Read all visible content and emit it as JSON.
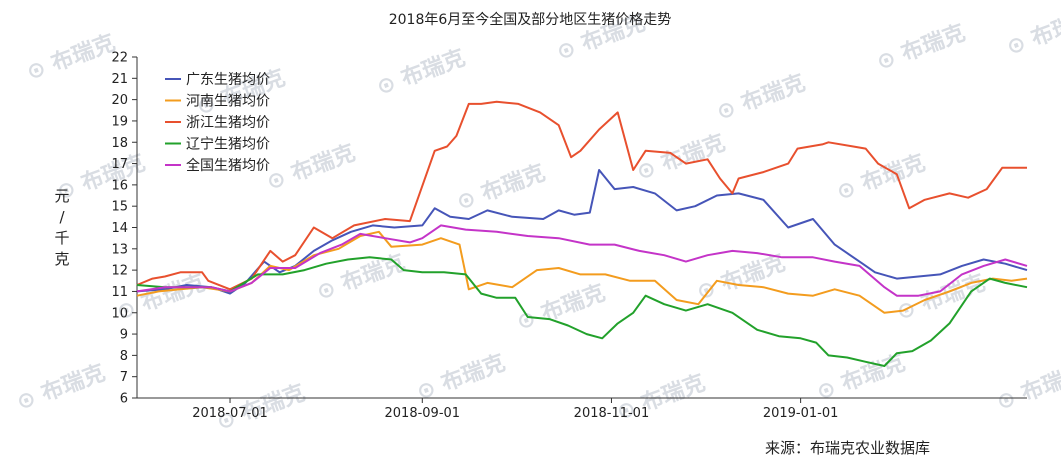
{
  "chart_data": {
    "type": "line",
    "title": "2018年6月至今全国及部分地区生猪价格走势",
    "ylabel_chars": [
      "元",
      "/",
      "千",
      "克"
    ],
    "source": "来源：布瑞克农业数据库",
    "watermark": "布瑞克",
    "x_start": "2018-06-01",
    "x_end": "2019-03-15",
    "x_ticks": [
      "2018-07-01",
      "2018-09-01",
      "2018-11-01",
      "2019-01-01"
    ],
    "ylim": [
      6,
      22
    ],
    "y_ticks": [
      6,
      7,
      8,
      9,
      10,
      11,
      12,
      13,
      14,
      15,
      16,
      17,
      18,
      19,
      20,
      21,
      22
    ],
    "legend_position": "top-left",
    "series": [
      {
        "name": "广东生猪均价",
        "color": "#4655b8",
        "points": [
          [
            "2018-06-01",
            11.0
          ],
          [
            "2018-06-10",
            11.1
          ],
          [
            "2018-06-17",
            11.3
          ],
          [
            "2018-06-25",
            11.2
          ],
          [
            "2018-07-01",
            10.9
          ],
          [
            "2018-07-06",
            11.4
          ],
          [
            "2018-07-12",
            12.4
          ],
          [
            "2018-07-17",
            11.9
          ],
          [
            "2018-07-22",
            12.2
          ],
          [
            "2018-07-28",
            12.9
          ],
          [
            "2018-08-03",
            13.4
          ],
          [
            "2018-08-09",
            13.8
          ],
          [
            "2018-08-16",
            14.1
          ],
          [
            "2018-08-23",
            14.0
          ],
          [
            "2018-09-01",
            14.1
          ],
          [
            "2018-09-05",
            14.9
          ],
          [
            "2018-09-10",
            14.5
          ],
          [
            "2018-09-16",
            14.4
          ],
          [
            "2018-09-22",
            14.8
          ],
          [
            "2018-09-30",
            14.5
          ],
          [
            "2018-10-10",
            14.4
          ],
          [
            "2018-10-15",
            14.8
          ],
          [
            "2018-10-20",
            14.6
          ],
          [
            "2018-10-25",
            14.7
          ],
          [
            "2018-10-28",
            16.7
          ],
          [
            "2018-11-02",
            15.8
          ],
          [
            "2018-11-08",
            15.9
          ],
          [
            "2018-11-15",
            15.6
          ],
          [
            "2018-11-22",
            14.8
          ],
          [
            "2018-11-28",
            15.0
          ],
          [
            "2018-12-05",
            15.5
          ],
          [
            "2018-12-12",
            15.6
          ],
          [
            "2018-12-20",
            15.3
          ],
          [
            "2018-12-28",
            14.0
          ],
          [
            "2019-01-05",
            14.4
          ],
          [
            "2019-01-12",
            13.2
          ],
          [
            "2019-01-16",
            12.8
          ],
          [
            "2019-01-21",
            12.3
          ],
          [
            "2019-01-25",
            11.9
          ],
          [
            "2019-02-01",
            11.6
          ],
          [
            "2019-02-08",
            11.7
          ],
          [
            "2019-02-15",
            11.8
          ],
          [
            "2019-02-22",
            12.2
          ],
          [
            "2019-03-01",
            12.5
          ],
          [
            "2019-03-08",
            12.3
          ],
          [
            "2019-03-15",
            12.0
          ]
        ]
      },
      {
        "name": "河南生猪均价",
        "color": "#f39c1e",
        "points": [
          [
            "2018-06-01",
            10.8
          ],
          [
            "2018-06-08",
            11.0
          ],
          [
            "2018-06-15",
            11.1
          ],
          [
            "2018-06-22",
            11.2
          ],
          [
            "2018-07-01",
            11.0
          ],
          [
            "2018-07-08",
            11.4
          ],
          [
            "2018-07-14",
            12.2
          ],
          [
            "2018-07-20",
            12.0
          ],
          [
            "2018-07-28",
            12.7
          ],
          [
            "2018-08-05",
            13.0
          ],
          [
            "2018-08-12",
            13.6
          ],
          [
            "2018-08-18",
            13.8
          ],
          [
            "2018-08-22",
            13.1
          ],
          [
            "2018-09-01",
            13.2
          ],
          [
            "2018-09-07",
            13.5
          ],
          [
            "2018-09-13",
            13.2
          ],
          [
            "2018-09-16",
            11.1
          ],
          [
            "2018-09-22",
            11.4
          ],
          [
            "2018-09-30",
            11.2
          ],
          [
            "2018-10-08",
            12.0
          ],
          [
            "2018-10-15",
            12.1
          ],
          [
            "2018-10-22",
            11.8
          ],
          [
            "2018-10-30",
            11.8
          ],
          [
            "2018-11-07",
            11.5
          ],
          [
            "2018-11-15",
            11.5
          ],
          [
            "2018-11-22",
            10.6
          ],
          [
            "2018-11-29",
            10.4
          ],
          [
            "2018-12-05",
            11.5
          ],
          [
            "2018-12-12",
            11.3
          ],
          [
            "2018-12-20",
            11.2
          ],
          [
            "2018-12-28",
            10.9
          ],
          [
            "2019-01-05",
            10.8
          ],
          [
            "2019-01-12",
            11.1
          ],
          [
            "2019-01-20",
            10.8
          ],
          [
            "2019-01-28",
            10.0
          ],
          [
            "2019-02-03",
            10.1
          ],
          [
            "2019-02-10",
            10.6
          ],
          [
            "2019-02-18",
            11.0
          ],
          [
            "2019-02-25",
            11.4
          ],
          [
            "2019-03-04",
            11.6
          ],
          [
            "2019-03-10",
            11.5
          ],
          [
            "2019-03-15",
            11.6
          ]
        ]
      },
      {
        "name": "浙江生猪均价",
        "color": "#e8502e",
        "points": [
          [
            "2018-06-01",
            11.3
          ],
          [
            "2018-06-06",
            11.6
          ],
          [
            "2018-06-10",
            11.7
          ],
          [
            "2018-06-15",
            11.9
          ],
          [
            "2018-06-22",
            11.9
          ],
          [
            "2018-06-24",
            11.5
          ],
          [
            "2018-07-01",
            11.1
          ],
          [
            "2018-07-08",
            11.6
          ],
          [
            "2018-07-14",
            12.9
          ],
          [
            "2018-07-18",
            12.4
          ],
          [
            "2018-07-22",
            12.7
          ],
          [
            "2018-07-28",
            14.0
          ],
          [
            "2018-08-03",
            13.5
          ],
          [
            "2018-08-10",
            14.1
          ],
          [
            "2018-08-20",
            14.4
          ],
          [
            "2018-08-28",
            14.3
          ],
          [
            "2018-09-05",
            17.6
          ],
          [
            "2018-09-09",
            17.8
          ],
          [
            "2018-09-12",
            18.3
          ],
          [
            "2018-09-16",
            19.8
          ],
          [
            "2018-09-20",
            19.8
          ],
          [
            "2018-09-25",
            19.9
          ],
          [
            "2018-10-02",
            19.8
          ],
          [
            "2018-10-09",
            19.4
          ],
          [
            "2018-10-15",
            18.8
          ],
          [
            "2018-10-19",
            17.3
          ],
          [
            "2018-10-22",
            17.6
          ],
          [
            "2018-10-28",
            18.6
          ],
          [
            "2018-11-03",
            19.4
          ],
          [
            "2018-11-08",
            16.7
          ],
          [
            "2018-11-12",
            17.6
          ],
          [
            "2018-11-20",
            17.5
          ],
          [
            "2018-11-25",
            17.0
          ],
          [
            "2018-12-02",
            17.2
          ],
          [
            "2018-12-06",
            16.3
          ],
          [
            "2018-12-10",
            15.6
          ],
          [
            "2018-12-12",
            16.3
          ],
          [
            "2018-12-20",
            16.6
          ],
          [
            "2018-12-28",
            17.0
          ],
          [
            "2018-12-31",
            17.7
          ],
          [
            "2019-01-08",
            17.9
          ],
          [
            "2019-01-10",
            18.0
          ],
          [
            "2019-01-18",
            17.8
          ],
          [
            "2019-01-22",
            17.7
          ],
          [
            "2019-01-26",
            17.0
          ],
          [
            "2019-02-01",
            16.5
          ],
          [
            "2019-02-05",
            14.9
          ],
          [
            "2019-02-10",
            15.3
          ],
          [
            "2019-02-18",
            15.6
          ],
          [
            "2019-02-24",
            15.4
          ],
          [
            "2019-03-02",
            15.8
          ],
          [
            "2019-03-07",
            16.8
          ],
          [
            "2019-03-15",
            16.8
          ]
        ]
      },
      {
        "name": "辽宁生猪均价",
        "color": "#22a12b",
        "points": [
          [
            "2018-06-01",
            11.3
          ],
          [
            "2018-06-10",
            11.2
          ],
          [
            "2018-06-18",
            11.2
          ],
          [
            "2018-06-25",
            11.2
          ],
          [
            "2018-07-01",
            11.0
          ],
          [
            "2018-07-10",
            11.8
          ],
          [
            "2018-07-18",
            11.8
          ],
          [
            "2018-07-25",
            12.0
          ],
          [
            "2018-08-01",
            12.3
          ],
          [
            "2018-08-08",
            12.5
          ],
          [
            "2018-08-15",
            12.6
          ],
          [
            "2018-08-22",
            12.5
          ],
          [
            "2018-08-26",
            12.0
          ],
          [
            "2018-09-01",
            11.9
          ],
          [
            "2018-09-08",
            11.9
          ],
          [
            "2018-09-15",
            11.8
          ],
          [
            "2018-09-20",
            10.9
          ],
          [
            "2018-09-25",
            10.7
          ],
          [
            "2018-10-01",
            10.7
          ],
          [
            "2018-10-05",
            9.8
          ],
          [
            "2018-10-12",
            9.7
          ],
          [
            "2018-10-18",
            9.4
          ],
          [
            "2018-10-24",
            9.0
          ],
          [
            "2018-10-29",
            8.8
          ],
          [
            "2018-11-03",
            9.5
          ],
          [
            "2018-11-08",
            10.0
          ],
          [
            "2018-11-12",
            10.8
          ],
          [
            "2018-11-18",
            10.4
          ],
          [
            "2018-11-25",
            10.1
          ],
          [
            "2018-12-02",
            10.4
          ],
          [
            "2018-12-10",
            10.0
          ],
          [
            "2018-12-18",
            9.2
          ],
          [
            "2018-12-25",
            8.9
          ],
          [
            "2019-01-01",
            8.8
          ],
          [
            "2019-01-06",
            8.6
          ],
          [
            "2019-01-10",
            8.0
          ],
          [
            "2019-01-16",
            7.9
          ],
          [
            "2019-01-22",
            7.7
          ],
          [
            "2019-01-28",
            7.5
          ],
          [
            "2019-02-01",
            8.1
          ],
          [
            "2019-02-06",
            8.2
          ],
          [
            "2019-02-12",
            8.7
          ],
          [
            "2019-02-18",
            9.5
          ],
          [
            "2019-02-25",
            11.0
          ],
          [
            "2019-03-03",
            11.6
          ],
          [
            "2019-03-08",
            11.4
          ],
          [
            "2019-03-15",
            11.2
          ]
        ]
      },
      {
        "name": "全国生猪均价",
        "color": "#c434c8",
        "points": [
          [
            "2018-06-01",
            11.0
          ],
          [
            "2018-06-10",
            11.2
          ],
          [
            "2018-06-17",
            11.2
          ],
          [
            "2018-06-25",
            11.2
          ],
          [
            "2018-07-01",
            11.0
          ],
          [
            "2018-07-08",
            11.4
          ],
          [
            "2018-07-14",
            12.1
          ],
          [
            "2018-07-22",
            12.1
          ],
          [
            "2018-07-30",
            12.8
          ],
          [
            "2018-08-06",
            13.2
          ],
          [
            "2018-08-12",
            13.7
          ],
          [
            "2018-08-20",
            13.5
          ],
          [
            "2018-08-28",
            13.3
          ],
          [
            "2018-09-01",
            13.5
          ],
          [
            "2018-09-07",
            14.1
          ],
          [
            "2018-09-15",
            13.9
          ],
          [
            "2018-09-25",
            13.8
          ],
          [
            "2018-10-05",
            13.6
          ],
          [
            "2018-10-15",
            13.5
          ],
          [
            "2018-10-25",
            13.2
          ],
          [
            "2018-11-02",
            13.2
          ],
          [
            "2018-11-10",
            12.9
          ],
          [
            "2018-11-18",
            12.7
          ],
          [
            "2018-11-25",
            12.4
          ],
          [
            "2018-12-02",
            12.7
          ],
          [
            "2018-12-10",
            12.9
          ],
          [
            "2018-12-18",
            12.8
          ],
          [
            "2018-12-26",
            12.6
          ],
          [
            "2019-01-05",
            12.6
          ],
          [
            "2019-01-12",
            12.4
          ],
          [
            "2019-01-20",
            12.2
          ],
          [
            "2019-01-28",
            11.2
          ],
          [
            "2019-02-01",
            10.8
          ],
          [
            "2019-02-08",
            10.8
          ],
          [
            "2019-02-15",
            11.0
          ],
          [
            "2019-02-22",
            11.8
          ],
          [
            "2019-03-01",
            12.2
          ],
          [
            "2019-03-08",
            12.5
          ],
          [
            "2019-03-15",
            12.2
          ]
        ]
      }
    ]
  }
}
